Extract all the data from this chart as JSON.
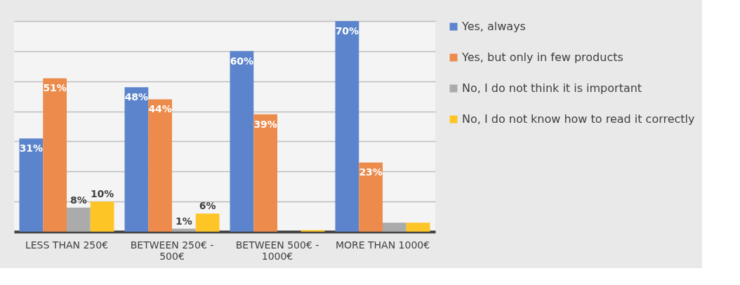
{
  "chart_data": {
    "type": "bar",
    "categories": [
      "LESS THAN 250€",
      "BETWEEN 250€ - 500€",
      "BETWEEN 500€ - 1000€",
      "MORE THAN 1000€"
    ],
    "series": [
      {
        "name": "Yes, always",
        "color": "#5b84cc",
        "values": [
          31,
          48,
          60,
          70
        ],
        "value_labels": [
          "31%",
          "48%",
          "60%",
          "70%"
        ]
      },
      {
        "name": "Yes, but only in few products",
        "color": "#ec8b4b",
        "values": [
          51,
          44,
          39,
          23
        ],
        "value_labels": [
          "51%",
          "44%",
          "39%",
          "23%"
        ]
      },
      {
        "name": "No, I do not think it is important",
        "color": "#ababab",
        "values": [
          8,
          1,
          0,
          3
        ],
        "value_labels": [
          "8%",
          "1%",
          null,
          null
        ]
      },
      {
        "name": "No, I do not know how to read it correctly",
        "color": "#fdc526",
        "values": [
          10,
          6,
          0.5,
          3
        ],
        "value_labels": [
          "10%",
          "6%",
          null,
          null
        ]
      }
    ],
    "ylim": [
      0,
      70
    ],
    "yticks": [
      {
        "value": 0,
        "label": null
      },
      {
        "value": 10,
        "label": null
      },
      {
        "value": 20,
        "label": null
      },
      {
        "value": 30,
        "label": null
      },
      {
        "value": 40,
        "label": null
      },
      {
        "value": 50,
        "label": null
      },
      {
        "value": 60,
        "label": null
      },
      {
        "value": 70,
        "label": null
      }
    ],
    "tick_labels": "x",
    "grid": "y",
    "legend": "right"
  }
}
